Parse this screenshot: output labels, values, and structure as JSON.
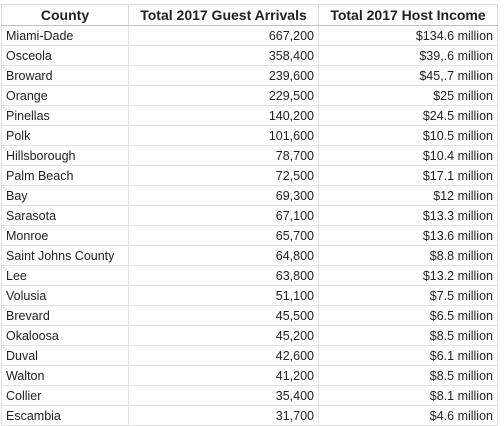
{
  "table": {
    "headers": [
      "County",
      "Total 2017 Guest Arrivals",
      "Total 2017 Host Income"
    ],
    "rows": [
      [
        "Miami-Dade",
        "667,200",
        "$134.6 million"
      ],
      [
        "Osceola",
        "358,400",
        "$39,.6 million"
      ],
      [
        "Broward",
        "239,600",
        "$45,.7 million"
      ],
      [
        "Orange",
        "229,500",
        "$25 million"
      ],
      [
        "Pinellas",
        "140,200",
        "$24.5 million"
      ],
      [
        "Polk",
        "101,600",
        "$10.5 million"
      ],
      [
        "Hillsborough",
        "78,700",
        "$10.4 million"
      ],
      [
        "Palm Beach",
        "72,500",
        "$17.1 million"
      ],
      [
        "Bay",
        "69,300",
        "$12 million"
      ],
      [
        "Sarasota",
        "67,100",
        "$13.3 million"
      ],
      [
        "Monroe",
        "65,700",
        "$13.6 million"
      ],
      [
        "Saint Johns County",
        "64,800",
        "$8.8 million"
      ],
      [
        "Lee",
        "63,800",
        "$13.2 million"
      ],
      [
        "Volusia",
        "51,100",
        "$7.5 million"
      ],
      [
        "Brevard",
        "45,500",
        "$6.5 million"
      ],
      [
        "Okaloosa",
        "45,200",
        "$8.5 million"
      ],
      [
        "Duval",
        "42,600",
        "$6.1 million"
      ],
      [
        "Walton",
        "41,200",
        "$8.5 million"
      ],
      [
        "Collier",
        "35,400",
        "$8.1 million"
      ],
      [
        "Escambia",
        "31,700",
        "$4.6 million"
      ]
    ]
  }
}
